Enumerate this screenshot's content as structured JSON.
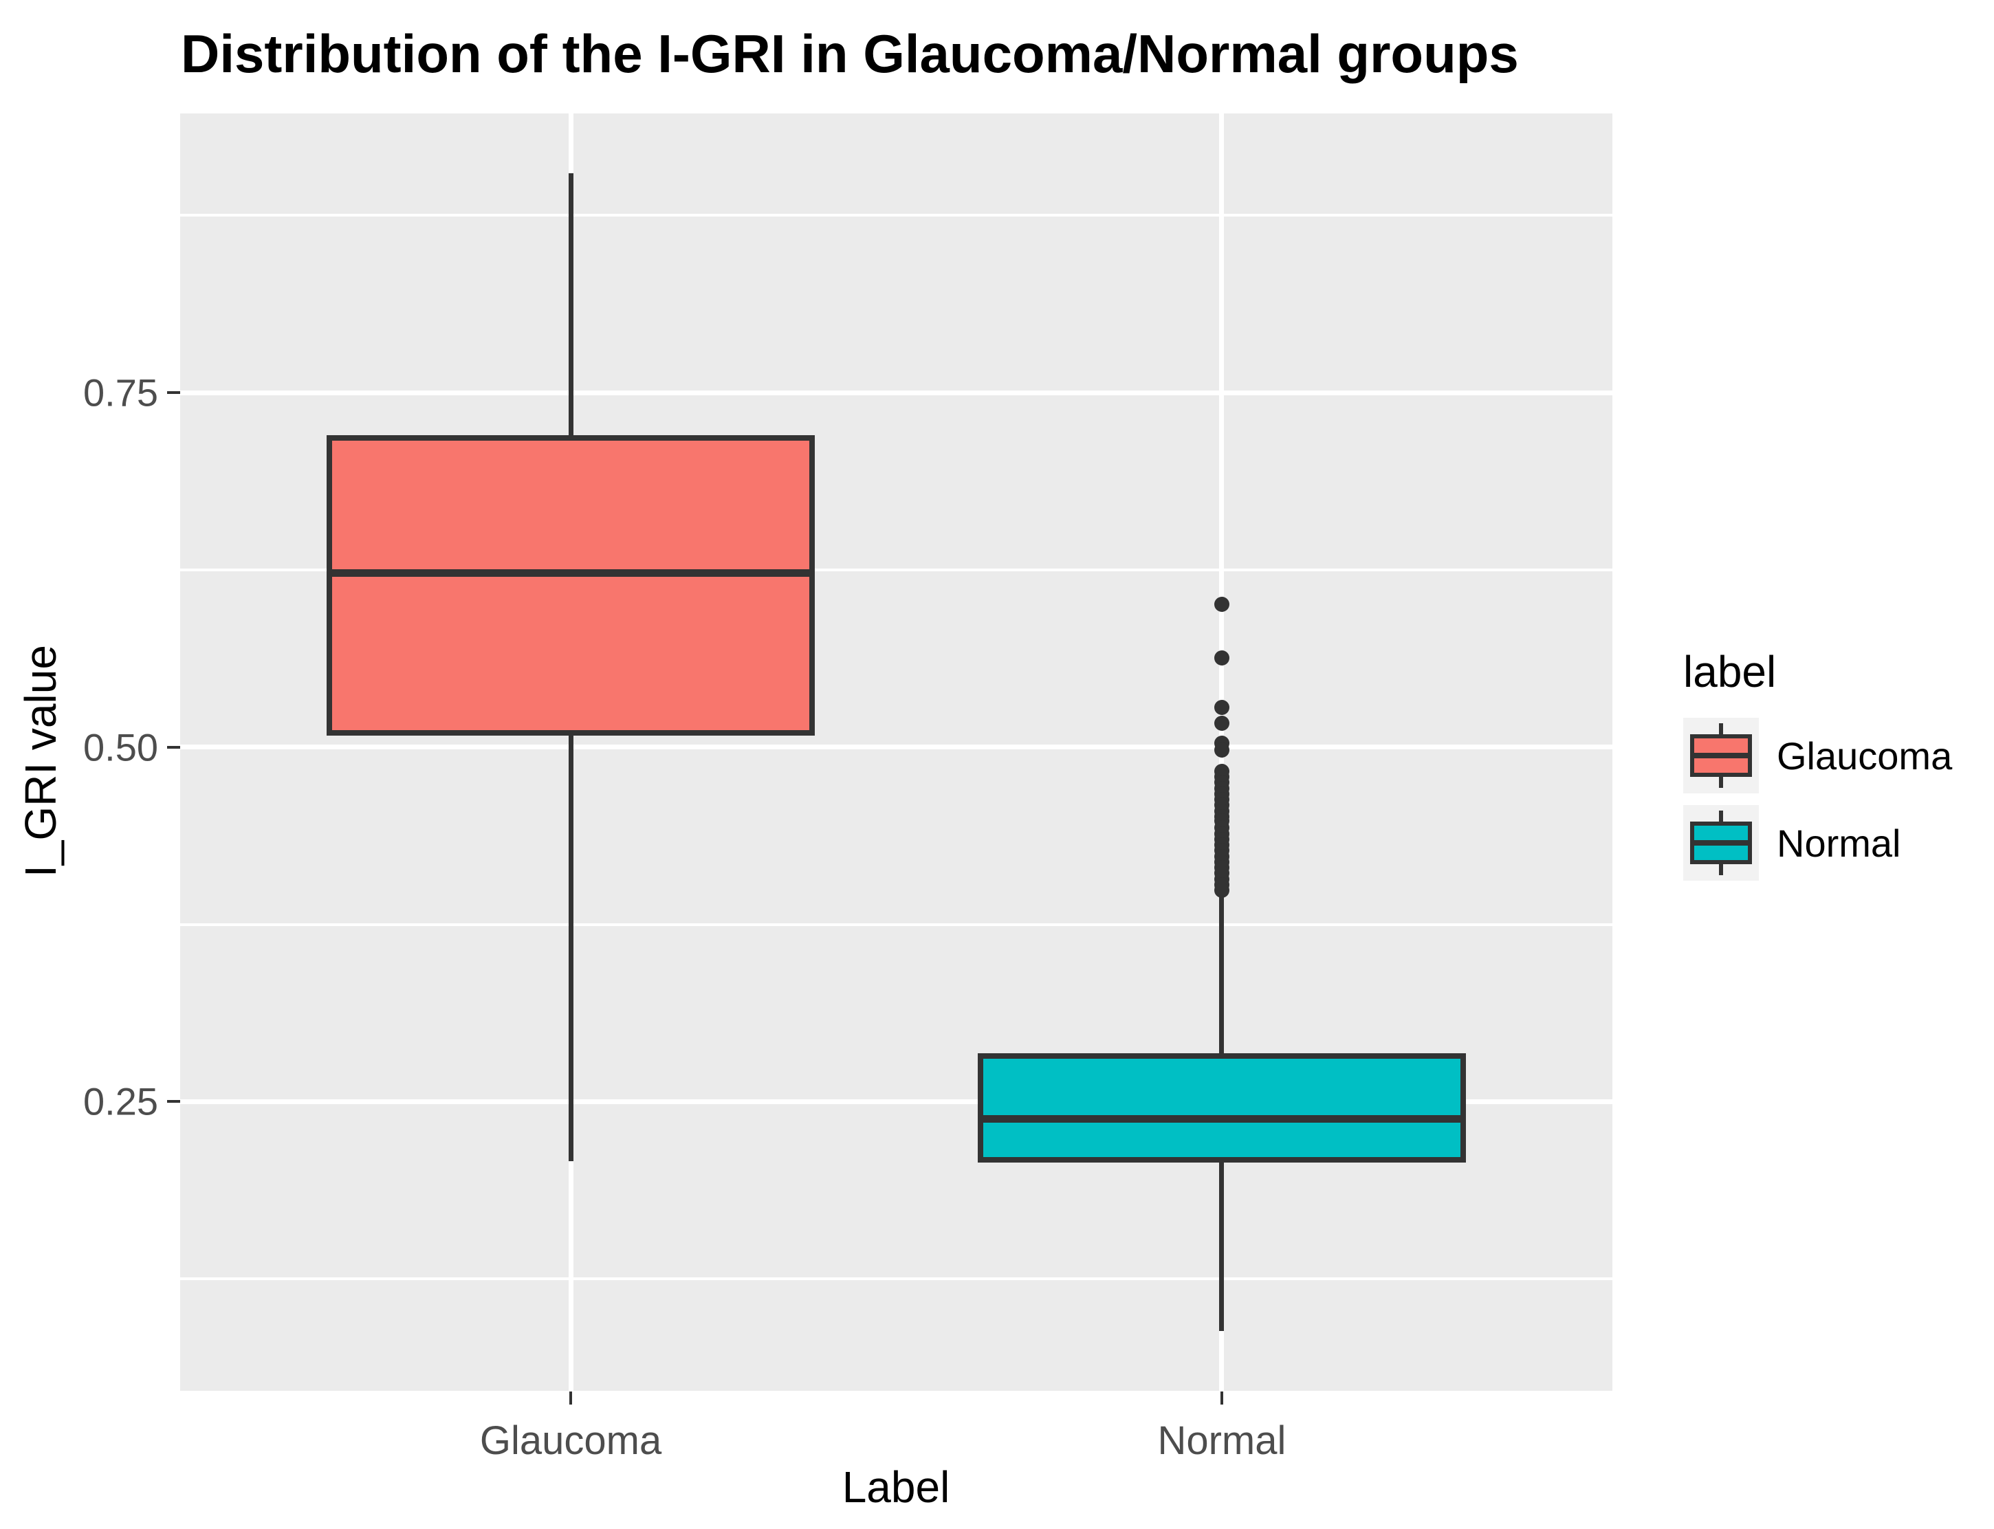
{
  "chart_data": {
    "type": "boxplot",
    "title": "Distribution of the I-GRI in Glaucoma/Normal groups",
    "xlabel": "Label",
    "ylabel": "I_GRI value",
    "categories": [
      "Glaucoma",
      "Normal"
    ],
    "y_ticks": [
      0.25,
      0.5,
      0.75
    ],
    "y_tick_labels": [
      "0.25",
      "0.50",
      "0.75"
    ],
    "y_minor_ticks": [
      0.125,
      0.375,
      0.625,
      0.875
    ],
    "ylim": [
      0.046,
      0.947
    ],
    "grid": true,
    "legend": {
      "title": "label",
      "position": "right",
      "entries": [
        {
          "label": "Glaucoma",
          "color": "#F8766D"
        },
        {
          "label": "Normal",
          "color": "#00BFC4"
        }
      ]
    },
    "series": [
      {
        "name": "Glaucoma",
        "color": "#F8766D",
        "whisker_low": 0.208,
        "q1": 0.508,
        "median": 0.623,
        "q3": 0.72,
        "whisker_high": 0.905,
        "outliers": []
      },
      {
        "name": "Normal",
        "color": "#00BFC4",
        "whisker_low": 0.088,
        "q1": 0.207,
        "median": 0.238,
        "q3": 0.284,
        "whisker_high": 0.397,
        "outliers": [
          0.601,
          0.563,
          0.528,
          0.517,
          0.503,
          0.498,
          0.483,
          0.479,
          0.475,
          0.471,
          0.467,
          0.463,
          0.459,
          0.455,
          0.451,
          0.448,
          0.443,
          0.439,
          0.435,
          0.431,
          0.427,
          0.423,
          0.419,
          0.415,
          0.411,
          0.407,
          0.403,
          0.399
        ]
      }
    ],
    "colors": {
      "panel_bg": "#EBEBEB",
      "gridline": "#FFFFFF",
      "box_outline": "#333333",
      "tick_label": "#4D4D4D",
      "axis_title": "#000000",
      "legend_key_bg": "#F2F2F2"
    }
  }
}
